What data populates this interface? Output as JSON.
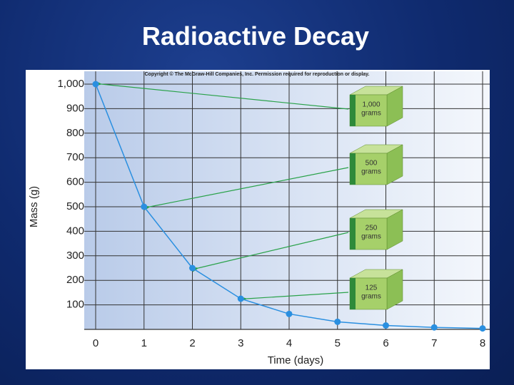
{
  "chart_data": {
    "type": "line",
    "title": "Radioactive Decay",
    "note": "Copyright © The McGraw-Hill Companies, Inc. Permission required for reproduction or display.",
    "x": [
      0,
      1,
      2,
      3,
      4,
      5,
      6,
      7,
      8
    ],
    "series": [
      {
        "name": "Mass",
        "color": "#2a8fe0",
        "values": [
          1000,
          500,
          250,
          125,
          63,
          31,
          16,
          8,
          4
        ]
      }
    ],
    "xlim": [
      0,
      8
    ],
    "xticks": [
      0,
      1,
      2,
      3,
      4,
      5,
      6,
      7,
      8
    ],
    "ylim": [
      0,
      1000
    ],
    "yticks": [
      100,
      200,
      300,
      400,
      500,
      600,
      700,
      800,
      900,
      {
        "value": 1000,
        "label": "1,000"
      }
    ],
    "xlabel": "Time (days)",
    "ylabel": "Mass (g)",
    "grid": true,
    "annotations": [
      {
        "amount": "1,000",
        "unit": "grams"
      },
      {
        "amount": "500",
        "unit": "grams"
      },
      {
        "amount": "250",
        "unit": "grams"
      },
      {
        "amount": "125",
        "unit": "grams"
      }
    ]
  }
}
